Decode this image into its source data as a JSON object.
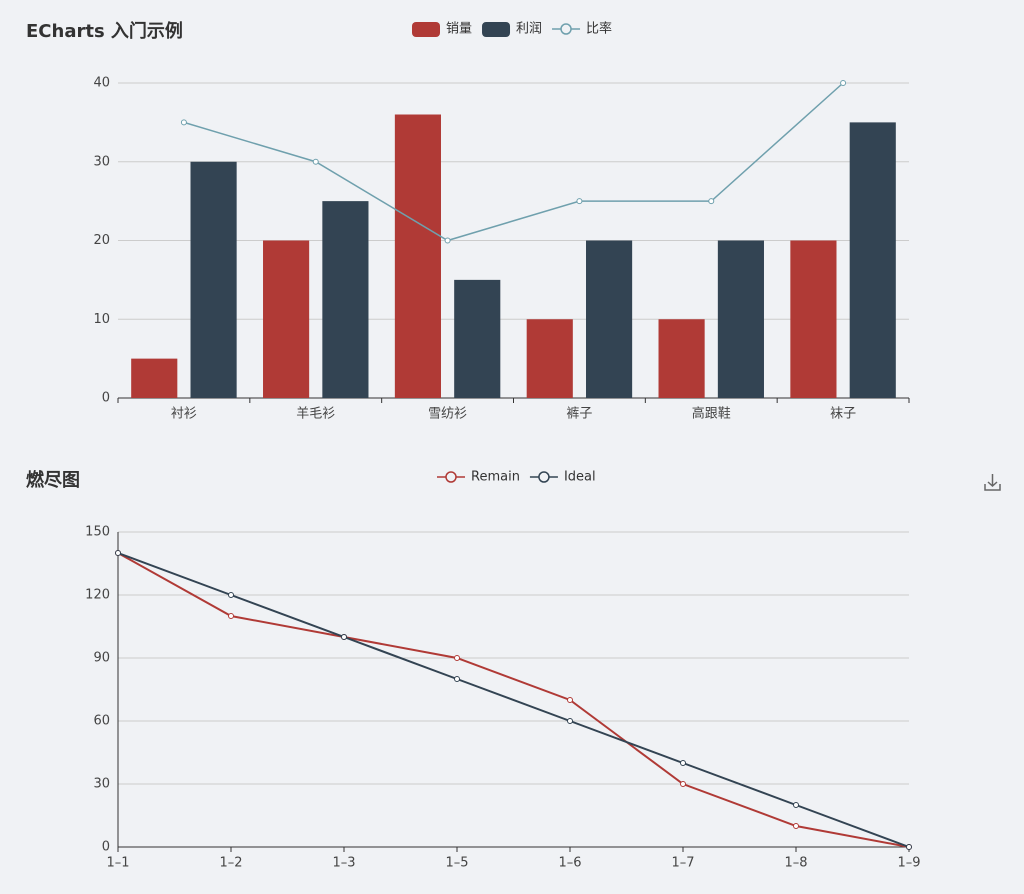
{
  "chart_data": [
    {
      "type": "bar",
      "title": "ECharts 入门示例",
      "categories": [
        "衬衫",
        "羊毛衫",
        "雪纺衫",
        "裤子",
        "高跟鞋",
        "袜子"
      ],
      "series": [
        {
          "name": "销量",
          "type": "bar",
          "color": "#b03a36",
          "values": [
            5,
            20,
            36,
            10,
            10,
            20
          ]
        },
        {
          "name": "利润",
          "type": "bar",
          "color": "#334453",
          "values": [
            30,
            25,
            15,
            20,
            20,
            35
          ]
        },
        {
          "name": "比率",
          "type": "line",
          "color": "#6fa0ad",
          "values": [
            35,
            30,
            20,
            25,
            25,
            40
          ]
        }
      ],
      "ylim": [
        0,
        40
      ],
      "yticks": [
        0,
        10,
        20,
        30,
        40
      ],
      "grid": true
    },
    {
      "type": "line",
      "title": "燃尽图",
      "categories": [
        "1–1",
        "1–2",
        "1–3",
        "1–5",
        "1–6",
        "1–7",
        "1–8",
        "1–9"
      ],
      "series": [
        {
          "name": "Remain",
          "type": "line",
          "color": "#b03a36",
          "values": [
            140,
            110,
            100,
            90,
            70,
            30,
            10,
            0
          ]
        },
        {
          "name": "Ideal",
          "type": "line",
          "color": "#334453",
          "values": [
            140,
            120,
            100,
            80,
            60,
            40,
            20,
            0
          ]
        }
      ],
      "ylim": [
        0,
        150
      ],
      "yticks": [
        0,
        30,
        60,
        90,
        120,
        150
      ],
      "grid": true
    }
  ]
}
